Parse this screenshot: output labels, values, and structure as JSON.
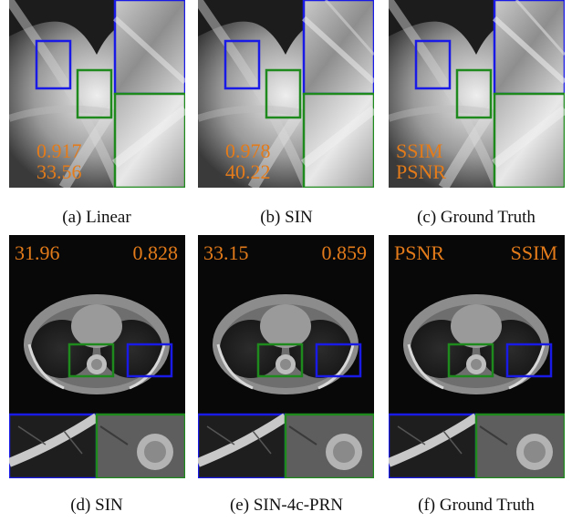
{
  "top_row": {
    "panels": [
      {
        "caption": "(a) Linear",
        "metric_top": "0.917",
        "metric_bottom": "33.56"
      },
      {
        "caption": "(b) SIN",
        "metric_top": "0.978",
        "metric_bottom": "40.22"
      },
      {
        "caption": "(c) Ground Truth",
        "metric_top": "SSIM",
        "metric_bottom": "PSNR"
      }
    ]
  },
  "bottom_row": {
    "panels": [
      {
        "caption": "(d) SIN",
        "metric_left": "31.96",
        "metric_right": "0.828"
      },
      {
        "caption": "(e) SIN-4c-PRN",
        "metric_left": "33.15",
        "metric_right": "0.859"
      },
      {
        "caption": "(f) Ground Truth",
        "metric_left": "PSNR",
        "metric_right": "SSIM"
      }
    ]
  },
  "colors": {
    "metric_text": "#e37b1a",
    "blue_box": "#1a1ae6",
    "green_box": "#1e8a1e"
  }
}
